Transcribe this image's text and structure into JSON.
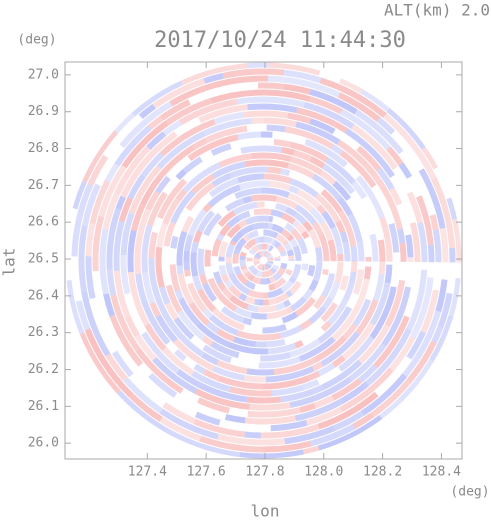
{
  "chart_data": {
    "type": "radar-ppi",
    "title": "2017/10/24 11:44:30",
    "subtitle": "ALT(km) 2.0",
    "x_label": "lon",
    "y_label": "lat",
    "x_unit": "(deg)",
    "y_unit": "(deg)",
    "xlim": [
      127.12,
      128.47
    ],
    "ylim": [
      25.957,
      27.035
    ],
    "xticks": [
      {
        "value": 127.4,
        "label": "127.4"
      },
      {
        "value": 127.6,
        "label": "127.6"
      },
      {
        "value": 127.8,
        "label": "127.8"
      },
      {
        "value": 128.0,
        "label": "128.0"
      },
      {
        "value": 128.2,
        "label": "128.2"
      },
      {
        "value": 128.4,
        "label": "128.4"
      }
    ],
    "yticks": [
      {
        "value": 26.0,
        "label": "26.0"
      },
      {
        "value": 26.1,
        "label": "26.1"
      },
      {
        "value": 26.2,
        "label": "26.2"
      },
      {
        "value": 26.3,
        "label": "26.3"
      },
      {
        "value": 26.4,
        "label": "26.4"
      },
      {
        "value": 26.5,
        "label": "26.5"
      },
      {
        "value": 26.6,
        "label": "26.6"
      },
      {
        "value": 26.7,
        "label": "26.7"
      },
      {
        "value": 26.8,
        "label": "26.8"
      },
      {
        "value": 26.9,
        "label": "26.9"
      },
      {
        "value": 27.0,
        "label": "27.0"
      }
    ]
  }
}
